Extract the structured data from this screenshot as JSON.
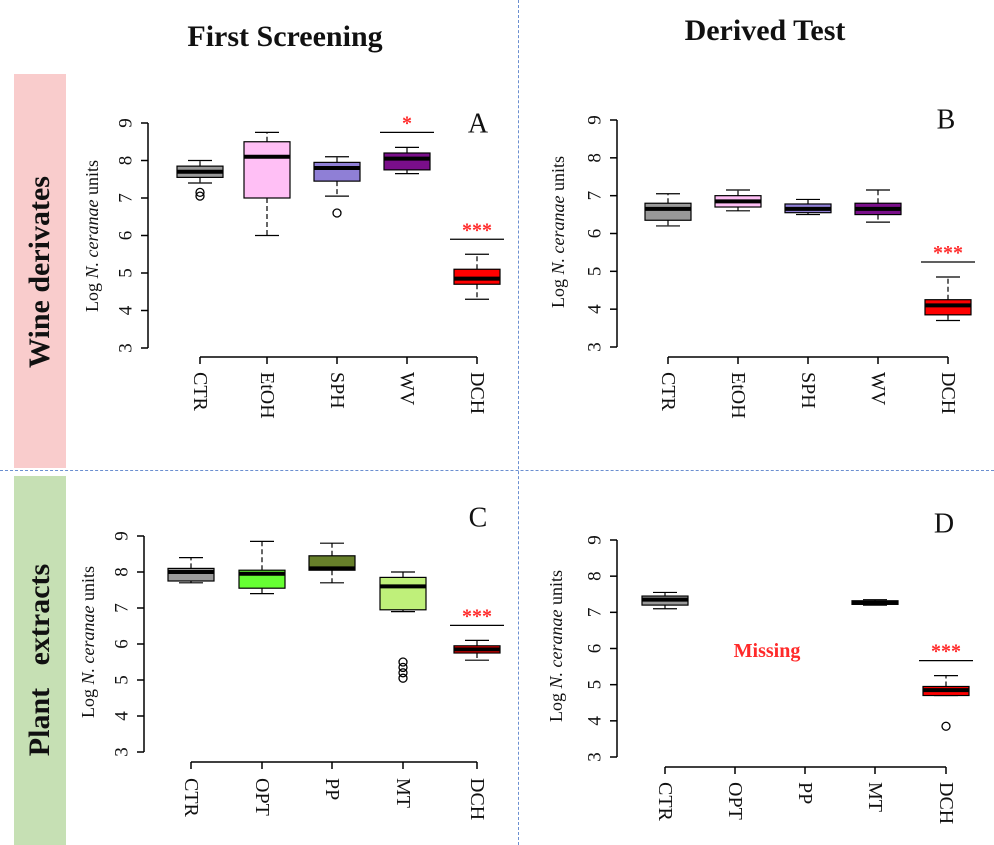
{
  "headers": {
    "col1": "First Screening",
    "col2": "Derived Test",
    "row1": "Wine derivates",
    "row2": "Plant   extracts"
  },
  "colors": {
    "row1_band": "#f9cccc",
    "row2_band": "#c6e0b4",
    "significance": "#ff2a2a"
  },
  "chart_data": [
    {
      "type": "box",
      "panel_label": "A",
      "ylabel_prefix": "Log",
      "ylabel_italic": "N. ceranae",
      "ylabel_suffix": "units",
      "ylim": [
        3,
        9
      ],
      "yticks": [
        3,
        4,
        5,
        6,
        7,
        8,
        9
      ],
      "categories": [
        "CTR",
        "EtOH",
        "SPH",
        "WV",
        "DCH"
      ],
      "boxes": [
        {
          "category": "CTR",
          "color": "#999999",
          "whisker_low": 7.4,
          "q1": 7.55,
          "median": 7.7,
          "q3": 7.85,
          "whisker_high": 8.0,
          "outliers": [
            7.05,
            7.15
          ]
        },
        {
          "category": "EtOH",
          "color": "#ffbff5",
          "whisker_low": 6.0,
          "q1": 7.0,
          "median": 8.1,
          "q3": 8.5,
          "whisker_high": 8.75,
          "outliers": []
        },
        {
          "category": "SPH",
          "color": "#8f7fd6",
          "whisker_low": 7.05,
          "q1": 7.45,
          "median": 7.8,
          "q3": 7.95,
          "whisker_high": 8.1,
          "outliers": [
            6.6
          ]
        },
        {
          "category": "WV",
          "color": "#7a0e8a",
          "whisker_low": 7.65,
          "q1": 7.75,
          "median": 8.05,
          "q3": 8.2,
          "whisker_high": 8.35,
          "outliers": [],
          "significance": "*"
        },
        {
          "category": "DCH",
          "color": "#ff0000",
          "whisker_low": 4.3,
          "q1": 4.7,
          "median": 4.85,
          "q3": 5.1,
          "whisker_high": 5.5,
          "outliers": [],
          "significance": "***"
        }
      ]
    },
    {
      "type": "box",
      "panel_label": "B",
      "ylabel_prefix": "Log",
      "ylabel_italic": "N. ceranae",
      "ylabel_suffix": "units",
      "ylim": [
        3,
        9
      ],
      "yticks": [
        3,
        4,
        5,
        6,
        7,
        8,
        9
      ],
      "categories": [
        "CTR",
        "EtOH",
        "SPH",
        "WV",
        "DCH"
      ],
      "boxes": [
        {
          "category": "CTR",
          "color": "#999999",
          "whisker_low": 6.2,
          "q1": 6.35,
          "median": 6.65,
          "q3": 6.8,
          "whisker_high": 7.05,
          "outliers": []
        },
        {
          "category": "EtOH",
          "color": "#ffbff5",
          "whisker_low": 6.6,
          "q1": 6.7,
          "median": 6.85,
          "q3": 7.0,
          "whisker_high": 7.15,
          "outliers": []
        },
        {
          "category": "SPH",
          "color": "#8f7fd6",
          "whisker_low": 6.5,
          "q1": 6.55,
          "median": 6.65,
          "q3": 6.78,
          "whisker_high": 6.9,
          "outliers": []
        },
        {
          "category": "WV",
          "color": "#7a0e8a",
          "whisker_low": 6.3,
          "q1": 6.5,
          "median": 6.65,
          "q3": 6.8,
          "whisker_high": 7.15,
          "outliers": []
        },
        {
          "category": "DCH",
          "color": "#ff0000",
          "whisker_low": 3.7,
          "q1": 3.85,
          "median": 4.1,
          "q3": 4.25,
          "whisker_high": 4.85,
          "outliers": [],
          "significance": "***"
        }
      ]
    },
    {
      "type": "box",
      "panel_label": "C",
      "ylabel_prefix": "Log",
      "ylabel_italic": "N. ceranae",
      "ylabel_suffix": "units",
      "ylim": [
        3,
        9
      ],
      "yticks": [
        3,
        4,
        5,
        6,
        7,
        8,
        9
      ],
      "categories": [
        "CTR",
        "OPT",
        "PP",
        "MT",
        "DCH"
      ],
      "boxes": [
        {
          "category": "CTR",
          "color": "#999999",
          "whisker_low": 7.7,
          "q1": 7.75,
          "median": 8.0,
          "q3": 8.1,
          "whisker_high": 8.4,
          "outliers": []
        },
        {
          "category": "OPT",
          "color": "#66ff33",
          "whisker_low": 7.4,
          "q1": 7.55,
          "median": 7.95,
          "q3": 8.05,
          "whisker_high": 8.85,
          "outliers": []
        },
        {
          "category": "PP",
          "color": "#667f2a",
          "whisker_low": 7.7,
          "q1": 8.05,
          "median": 8.1,
          "q3": 8.45,
          "whisker_high": 8.8,
          "outliers": []
        },
        {
          "category": "MT",
          "color": "#bff07a",
          "whisker_low": 6.9,
          "q1": 6.95,
          "median": 7.6,
          "q3": 7.85,
          "whisker_high": 8.0,
          "outliers": [
            5.05,
            5.2,
            5.35,
            5.5
          ]
        },
        {
          "category": "DCH",
          "color": "#ff0000",
          "whisker_low": 5.55,
          "q1": 5.75,
          "median": 5.85,
          "q3": 5.95,
          "whisker_high": 6.1,
          "outliers": [],
          "significance": "***"
        }
      ]
    },
    {
      "type": "box",
      "panel_label": "D",
      "ylabel_prefix": "Log",
      "ylabel_italic": "N. ceranae",
      "ylabel_suffix": "units",
      "ylim": [
        3,
        9
      ],
      "yticks": [
        3,
        4,
        5,
        6,
        7,
        8,
        9
      ],
      "categories": [
        "CTR",
        "OPT",
        "PP",
        "MT",
        "DCH"
      ],
      "annotation": "Missing",
      "boxes": [
        {
          "category": "CTR",
          "color": "#999999",
          "whisker_low": 7.1,
          "q1": 7.2,
          "median": 7.35,
          "q3": 7.45,
          "whisker_high": 7.55,
          "outliers": []
        },
        {
          "category": "MT",
          "color": "#333333",
          "whisker_low": 7.2,
          "q1": 7.22,
          "median": 7.27,
          "q3": 7.32,
          "whisker_high": 7.35,
          "outliers": []
        },
        {
          "category": "DCH",
          "color": "#ff0000",
          "whisker_low": 4.7,
          "q1": 4.7,
          "median": 4.85,
          "q3": 4.95,
          "whisker_high": 5.25,
          "outliers": [
            3.85
          ],
          "significance": "***"
        }
      ]
    }
  ]
}
